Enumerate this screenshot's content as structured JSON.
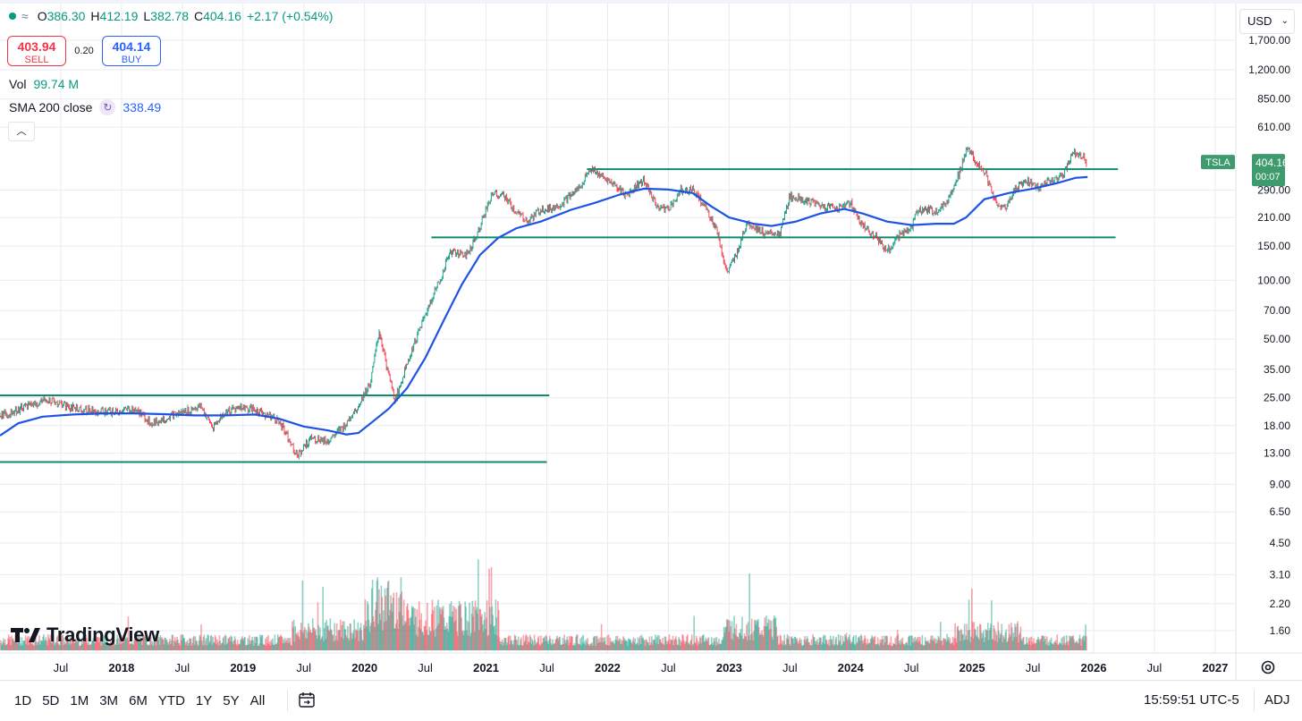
{
  "ohlc": {
    "open_label": "O",
    "open": "386.30",
    "high_label": "H",
    "high": "412.19",
    "low_label": "L",
    "low": "382.78",
    "close_label": "C",
    "close": "404.16",
    "change": "+2.17 (+0.54%)"
  },
  "trade": {
    "sell_price": "403.94",
    "sell_label": "SELL",
    "spread": "0.20",
    "buy_price": "404.14",
    "buy_label": "BUY"
  },
  "indicators": {
    "vol_label": "Vol",
    "vol_value": "99.74 M",
    "sma_label": "SMA 200 close",
    "sma_value": "338.49"
  },
  "currency": "USD",
  "logo": "TradingView",
  "ranges": [
    "1D",
    "5D",
    "1M",
    "3M",
    "6M",
    "YTD",
    "1Y",
    "5Y",
    "All"
  ],
  "clock": "15:59:51 UTC-5",
  "adj": "ADJ",
  "colors": {
    "up": "#089981",
    "down": "#f23645",
    "sma": "#1e53e5",
    "hline": "#0e8a6e",
    "grid": "#e9ebf0"
  },
  "chart_data": {
    "type": "line",
    "symbol": "TSLA",
    "scale": "log",
    "last_price": "404.16",
    "countdown": "00:07",
    "y_ticks": [
      "1,700.00",
      "1,200.00",
      "850.00",
      "610.00",
      "290.00",
      "210.00",
      "150.00",
      "100.00",
      "70.00",
      "50.00",
      "35.00",
      "25.00",
      "18.00",
      "13.00",
      "9.00",
      "6.50",
      "4.50",
      "3.10",
      "2.20",
      "1.60"
    ],
    "y_tick_values": [
      1700,
      1200,
      850,
      610,
      290,
      210,
      150,
      100,
      70,
      50,
      35,
      25,
      18,
      13,
      9,
      6.5,
      4.5,
      3.1,
      2.2,
      1.6
    ],
    "x_ticks": [
      {
        "label": "Jul",
        "t": 2017.5
      },
      {
        "label": "2018",
        "t": 2018.0
      },
      {
        "label": "Jul",
        "t": 2018.5
      },
      {
        "label": "2019",
        "t": 2019.0
      },
      {
        "label": "Jul",
        "t": 2019.5
      },
      {
        "label": "2020",
        "t": 2020.0
      },
      {
        "label": "Jul",
        "t": 2020.5
      },
      {
        "label": "2021",
        "t": 2021.0
      },
      {
        "label": "Jul",
        "t": 2021.5
      },
      {
        "label": "2022",
        "t": 2022.0
      },
      {
        "label": "Jul",
        "t": 2022.5
      },
      {
        "label": "2023",
        "t": 2023.0
      },
      {
        "label": "Jul",
        "t": 2023.5
      },
      {
        "label": "2024",
        "t": 2024.0
      },
      {
        "label": "Jul",
        "t": 2024.5
      },
      {
        "label": "2025",
        "t": 2025.0
      },
      {
        "label": "Jul",
        "t": 2025.5
      },
      {
        "label": "2026",
        "t": 2026.0
      },
      {
        "label": "Jul",
        "t": 2026.5
      },
      {
        "label": "2027",
        "t": 2027.0
      }
    ],
    "price_series": {
      "name": "TSLA",
      "points": [
        [
          2017.05,
          20.5
        ],
        [
          2017.2,
          22.5
        ],
        [
          2017.4,
          24.5
        ],
        [
          2017.55,
          22.5
        ],
        [
          2017.75,
          21.5
        ],
        [
          2017.95,
          21
        ],
        [
          2018.1,
          22
        ],
        [
          2018.25,
          18.5
        ],
        [
          2018.4,
          20
        ],
        [
          2018.55,
          21.5
        ],
        [
          2018.65,
          22.5
        ],
        [
          2018.75,
          17.5
        ],
        [
          2018.85,
          21
        ],
        [
          2018.97,
          22.5
        ],
        [
          2019.15,
          21
        ],
        [
          2019.3,
          19
        ],
        [
          2019.4,
          14.5
        ],
        [
          2019.45,
          12.5
        ],
        [
          2019.55,
          15.5
        ],
        [
          2019.7,
          15
        ],
        [
          2019.82,
          17.5
        ],
        [
          2019.95,
          23
        ],
        [
          2020.05,
          30
        ],
        [
          2020.12,
          55
        ],
        [
          2020.2,
          32
        ],
        [
          2020.25,
          24
        ],
        [
          2020.35,
          38
        ],
        [
          2020.45,
          55
        ],
        [
          2020.55,
          80
        ],
        [
          2020.62,
          100
        ],
        [
          2020.7,
          140
        ],
        [
          2020.85,
          135
        ],
        [
          2020.95,
          190
        ],
        [
          2021.05,
          280
        ],
        [
          2021.15,
          270
        ],
        [
          2021.25,
          220
        ],
        [
          2021.35,
          200
        ],
        [
          2021.45,
          230
        ],
        [
          2021.6,
          240
        ],
        [
          2021.75,
          290
        ],
        [
          2021.85,
          370
        ],
        [
          2021.95,
          340
        ],
        [
          2022.05,
          310
        ],
        [
          2022.15,
          270
        ],
        [
          2022.3,
          330
        ],
        [
          2022.4,
          240
        ],
        [
          2022.5,
          230
        ],
        [
          2022.6,
          290
        ],
        [
          2022.7,
          290
        ],
        [
          2022.8,
          240
        ],
        [
          2022.9,
          180
        ],
        [
          2022.98,
          108
        ],
        [
          2023.05,
          130
        ],
        [
          2023.15,
          200
        ],
        [
          2023.3,
          170
        ],
        [
          2023.42,
          175
        ],
        [
          2023.5,
          270
        ],
        [
          2023.6,
          260
        ],
        [
          2023.75,
          240
        ],
        [
          2023.9,
          235
        ],
        [
          2024.0,
          250
        ],
        [
          2024.1,
          190
        ],
        [
          2024.2,
          170
        ],
        [
          2024.3,
          142
        ],
        [
          2024.42,
          175
        ],
        [
          2024.5,
          185
        ],
        [
          2024.55,
          230
        ],
        [
          2024.7,
          225
        ],
        [
          2024.8,
          255
        ],
        [
          2024.88,
          340
        ],
        [
          2024.96,
          470
        ],
        [
          2025.03,
          410
        ],
        [
          2025.12,
          340
        ],
        [
          2025.2,
          240
        ],
        [
          2025.28,
          235
        ],
        [
          2025.36,
          300
        ],
        [
          2025.45,
          320
        ],
        [
          2025.55,
          300
        ],
        [
          2025.65,
          325
        ],
        [
          2025.75,
          345
        ],
        [
          2025.82,
          450
        ],
        [
          2025.9,
          440
        ],
        [
          2025.94,
          404.16
        ]
      ]
    },
    "sma_series": {
      "name": "SMA 200 close",
      "points": [
        [
          2017.0,
          16
        ],
        [
          2017.15,
          18.5
        ],
        [
          2017.35,
          20
        ],
        [
          2017.6,
          20.5
        ],
        [
          2017.85,
          20.8
        ],
        [
          2018.1,
          20.8
        ],
        [
          2018.35,
          20.6
        ],
        [
          2018.6,
          20.3
        ],
        [
          2018.85,
          20.3
        ],
        [
          2019.1,
          20.5
        ],
        [
          2019.3,
          19.5
        ],
        [
          2019.5,
          17.8
        ],
        [
          2019.7,
          17
        ],
        [
          2019.85,
          16.2
        ],
        [
          2019.95,
          16.5
        ],
        [
          2020.05,
          18.5
        ],
        [
          2020.2,
          22
        ],
        [
          2020.35,
          28
        ],
        [
          2020.5,
          40
        ],
        [
          2020.65,
          62
        ],
        [
          2020.8,
          95
        ],
        [
          2020.95,
          135
        ],
        [
          2021.1,
          165
        ],
        [
          2021.25,
          185
        ],
        [
          2021.45,
          200
        ],
        [
          2021.7,
          230
        ],
        [
          2021.9,
          250
        ],
        [
          2022.1,
          275
        ],
        [
          2022.3,
          295
        ],
        [
          2022.5,
          292
        ],
        [
          2022.7,
          280
        ],
        [
          2022.85,
          240
        ],
        [
          2023.0,
          210
        ],
        [
          2023.2,
          195
        ],
        [
          2023.35,
          190
        ],
        [
          2023.55,
          200
        ],
        [
          2023.75,
          220
        ],
        [
          2023.95,
          232
        ],
        [
          2024.1,
          220
        ],
        [
          2024.3,
          200
        ],
        [
          2024.5,
          192
        ],
        [
          2024.7,
          195
        ],
        [
          2024.85,
          195
        ],
        [
          2024.95,
          210
        ],
        [
          2025.1,
          260
        ],
        [
          2025.3,
          280
        ],
        [
          2025.5,
          295
        ],
        [
          2025.7,
          315
        ],
        [
          2025.85,
          335
        ],
        [
          2025.95,
          338.49
        ]
      ]
    },
    "horizontal_levels": [
      {
        "price": 371,
        "from": 2021.83,
        "to": 2026.2
      },
      {
        "price": 166,
        "from": 2020.55,
        "to": 2026.18
      },
      {
        "price": 25.7,
        "from": 2017.0,
        "to": 2021.52
      },
      {
        "price": 11.7,
        "from": 2017.0,
        "to": 2021.5
      }
    ],
    "volume_note": "volume bars shown at bottom, scale implied"
  }
}
